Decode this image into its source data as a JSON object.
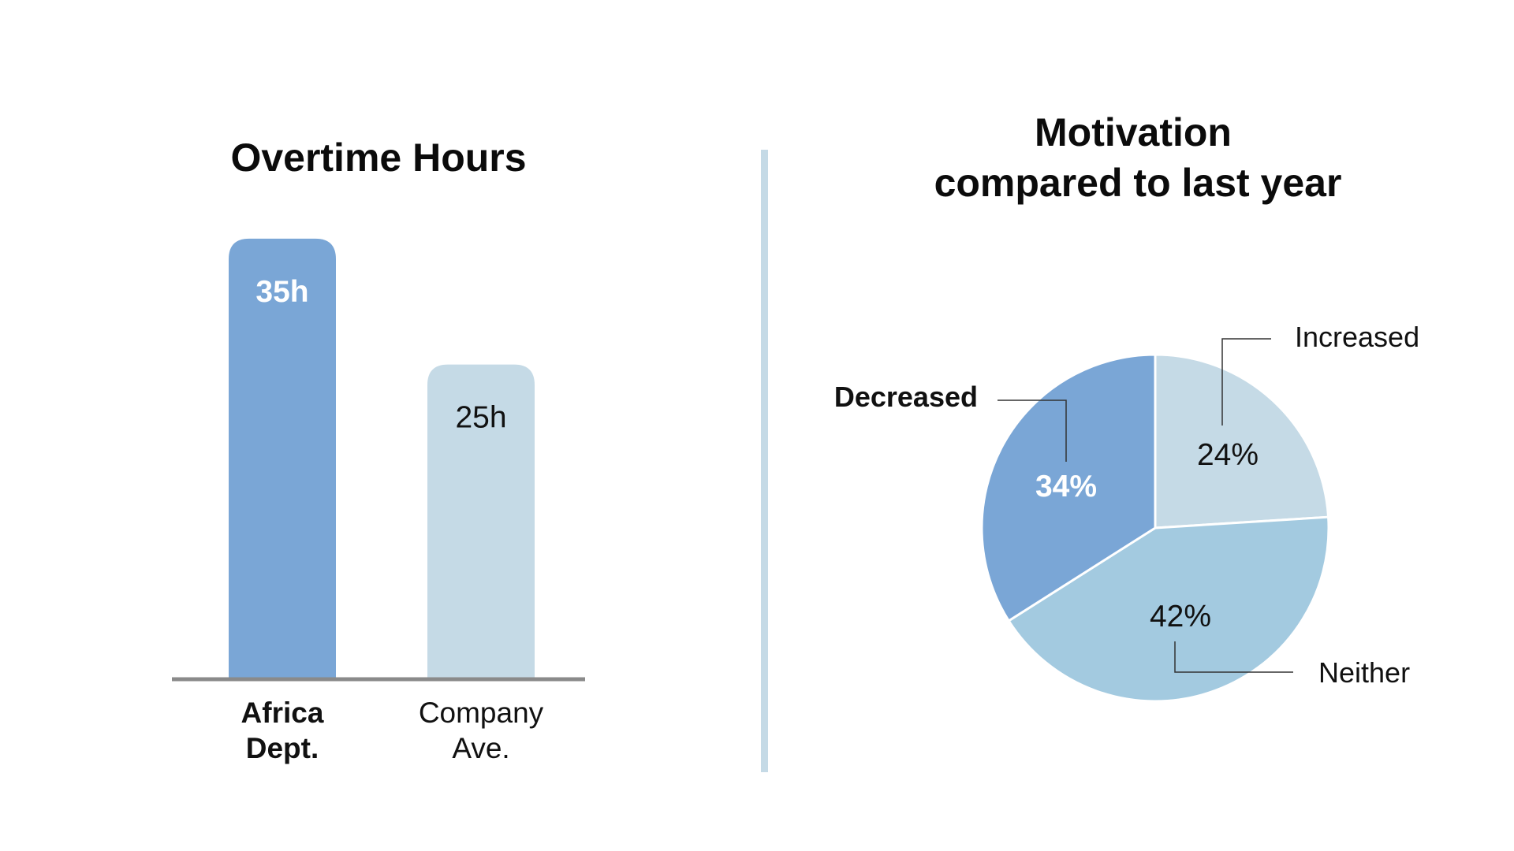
{
  "colors": {
    "highlight": "#7aa6d6",
    "light": "#c5dae6",
    "mid": "#a3cae0",
    "divider": "#c5dae6",
    "axis": "#8a8a8a",
    "leader": "#333333"
  },
  "chart_data": [
    {
      "type": "bar",
      "title": "Overtime Hours",
      "categories": [
        {
          "lines": [
            "Africa",
            "Dept."
          ],
          "emphasis": true
        },
        {
          "lines": [
            "Company",
            "Ave."
          ],
          "emphasis": false
        }
      ],
      "values": [
        35,
        25
      ],
      "value_labels": [
        "35h",
        "25h"
      ],
      "unit": "h",
      "ylim": [
        0,
        38
      ],
      "grid": false,
      "legend": "none"
    },
    {
      "type": "pie",
      "title_lines": [
        "Motivation",
        "compared to last year"
      ],
      "slices": [
        {
          "label": "Increased",
          "value": 24,
          "value_label": "24%",
          "emphasis": false
        },
        {
          "label": "Neither",
          "value": 42,
          "value_label": "42%",
          "emphasis": false
        },
        {
          "label": "Decreased",
          "value": 34,
          "value_label": "34%",
          "emphasis": true
        }
      ],
      "start": "12 o'clock",
      "direction": "clockwise",
      "legend": "none"
    }
  ]
}
